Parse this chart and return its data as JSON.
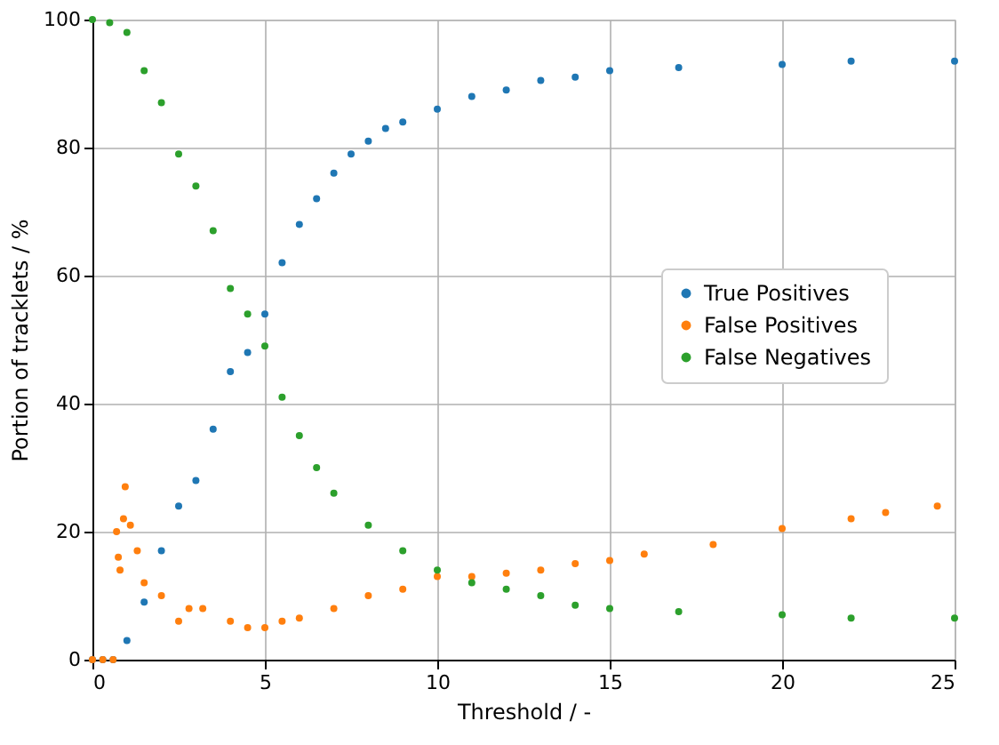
{
  "chart_data": {
    "type": "scatter",
    "xlabel": "Threshold / -",
    "ylabel": "Portion of tracklets / %",
    "xlim": [
      0,
      25
    ],
    "ylim": [
      0,
      100
    ],
    "xticks": [
      0,
      5,
      10,
      15,
      20,
      25
    ],
    "yticks": [
      0,
      20,
      40,
      60,
      80,
      100
    ],
    "grid": true,
    "legend": "right",
    "marker": "circle",
    "series": [
      {
        "name": "True Positives",
        "color": "#1f77b4",
        "x": [
          0,
          0.3,
          0.6,
          1,
          1.5,
          2,
          2.5,
          3,
          3.5,
          4,
          4.5,
          5,
          5.5,
          6,
          6.5,
          7,
          7.5,
          8,
          8.5,
          9,
          10,
          11,
          12,
          13,
          14,
          15,
          17,
          20,
          22,
          25
        ],
        "values": [
          0,
          0,
          0,
          3,
          9,
          17,
          24,
          28,
          36,
          45,
          48,
          54,
          62,
          68,
          72,
          76,
          79,
          81,
          83,
          84,
          86,
          88,
          89,
          90.5,
          91,
          92,
          92.5,
          93,
          93.5,
          93.5
        ]
      },
      {
        "name": "False Positives",
        "color": "#ff7f0e",
        "x": [
          0,
          0.3,
          0.6,
          0.7,
          0.75,
          0.8,
          0.95,
          0.9,
          1.1,
          1.3,
          1.5,
          2,
          2.5,
          2.8,
          3.2,
          4,
          4.5,
          5,
          5.5,
          6,
          7,
          8,
          9,
          10,
          11,
          12,
          13,
          14,
          15,
          16,
          18,
          20,
          22,
          23,
          24.5
        ],
        "values": [
          0,
          0,
          0,
          20,
          16,
          14,
          27,
          22,
          21,
          17,
          12,
          10,
          6,
          8,
          8,
          6,
          5,
          5,
          6,
          6.5,
          8,
          10,
          11,
          13,
          13,
          13.5,
          14,
          15,
          15.5,
          16.5,
          18,
          20.5,
          22,
          23,
          24
        ]
      },
      {
        "name": "False Negatives",
        "color": "#2ca02c",
        "x": [
          0,
          0.5,
          1,
          1.5,
          2,
          2.5,
          3,
          3.5,
          4,
          4.5,
          5,
          5.5,
          6,
          6.5,
          7,
          8,
          9,
          10,
          11,
          12,
          13,
          14,
          15,
          17,
          20,
          22,
          25
        ],
        "values": [
          100,
          99.5,
          98,
          92,
          87,
          79,
          74,
          67,
          58,
          54,
          49,
          41,
          35,
          30,
          26,
          21,
          17,
          14,
          12,
          11,
          10,
          8.5,
          8,
          7.5,
          7,
          6.5,
          6.5
        ]
      }
    ]
  }
}
